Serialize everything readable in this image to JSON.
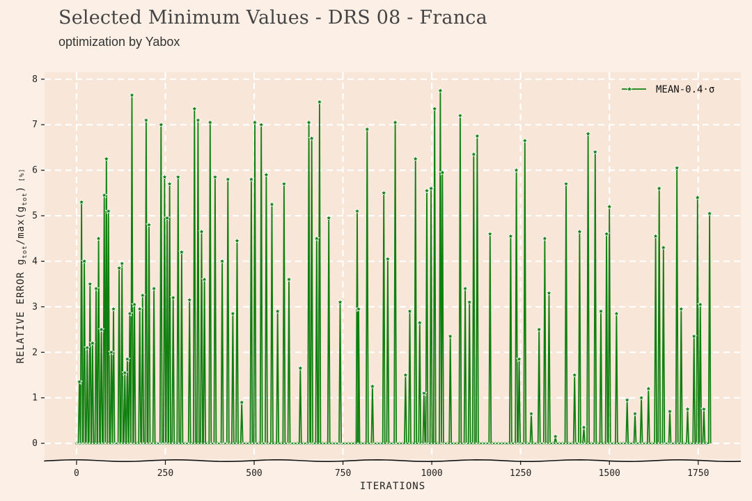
{
  "header": {
    "title": "Selected Minimum Values - DRS 08 - Franca",
    "subtitle": "optimization by Yabox"
  },
  "colors": {
    "background": "#fcf0e6",
    "plot_background": "#f8e6d9",
    "grid": "#ffffff",
    "series": "#0f7f0f"
  },
  "chart_data": {
    "type": "line",
    "title": "Selected Minimum Values - DRS 08 - Franca",
    "subtitle": "optimization by Yabox",
    "xlabel": "ITERATIONS",
    "ylabel": "RELATIVE ERROR g_tot/max(g_tot) [%]",
    "ylabel_main": "RELATIVE ERROR g",
    "ylabel_sub1": "tot",
    "ylabel_mid": "/max(g",
    "ylabel_sub2": "tot",
    "ylabel_end": ")",
    "ylabel_unit": "[%]",
    "xlim": [
      -90,
      1870
    ],
    "ylim": [
      -0.35,
      8.15
    ],
    "xticks": [
      0,
      250,
      500,
      750,
      1000,
      1250,
      1500,
      1750
    ],
    "yticks": [
      0,
      1,
      2,
      3,
      4,
      5,
      6,
      7,
      8
    ],
    "grid": true,
    "legend_position": "top-right",
    "series": [
      {
        "name": "MEAN-0.4·σ",
        "marker": "star",
        "note_values": "estimated peak heights of spikes read from the chart, each spike returns to 0",
        "peaks": [
          [
            8,
            1.35
          ],
          [
            14,
            5.3
          ],
          [
            22,
            4.0
          ],
          [
            30,
            2.1
          ],
          [
            38,
            3.5
          ],
          [
            45,
            2.2
          ],
          [
            55,
            3.4
          ],
          [
            62,
            4.5
          ],
          [
            70,
            2.5
          ],
          [
            78,
            5.45
          ],
          [
            84,
            6.25
          ],
          [
            90,
            5.1
          ],
          [
            98,
            2.0
          ],
          [
            104,
            2.95
          ],
          [
            120,
            3.85
          ],
          [
            128,
            3.95
          ],
          [
            136,
            1.55
          ],
          [
            143,
            1.85
          ],
          [
            150,
            2.85
          ],
          [
            156,
            7.65
          ],
          [
            163,
            3.05
          ],
          [
            178,
            2.95
          ],
          [
            186,
            3.25
          ],
          [
            196,
            7.1
          ],
          [
            204,
            4.8
          ],
          [
            218,
            3.4
          ],
          [
            238,
            7.0
          ],
          [
            248,
            5.85
          ],
          [
            255,
            4.95
          ],
          [
            262,
            5.7
          ],
          [
            272,
            3.2
          ],
          [
            286,
            5.85
          ],
          [
            296,
            4.2
          ],
          [
            318,
            3.15
          ],
          [
            332,
            7.35
          ],
          [
            342,
            7.1
          ],
          [
            352,
            4.65
          ],
          [
            360,
            3.6
          ],
          [
            376,
            7.05
          ],
          [
            390,
            5.85
          ],
          [
            410,
            4.0
          ],
          [
            426,
            5.8
          ],
          [
            440,
            2.85
          ],
          [
            452,
            4.45
          ],
          [
            465,
            0.9
          ],
          [
            492,
            5.8
          ],
          [
            502,
            7.05
          ],
          [
            520,
            7.0
          ],
          [
            534,
            5.9
          ],
          [
            550,
            5.25
          ],
          [
            566,
            2.9
          ],
          [
            584,
            5.7
          ],
          [
            598,
            3.6
          ],
          [
            630,
            1.65
          ],
          [
            654,
            7.05
          ],
          [
            662,
            6.7
          ],
          [
            676,
            4.5
          ],
          [
            684,
            7.5
          ],
          [
            710,
            4.95
          ],
          [
            742,
            3.1
          ],
          [
            790,
            5.1
          ],
          [
            794,
            2.95
          ],
          [
            818,
            6.9
          ],
          [
            833,
            1.25
          ],
          [
            865,
            5.5
          ],
          [
            876,
            4.05
          ],
          [
            897,
            7.05
          ],
          [
            926,
            1.5
          ],
          [
            938,
            2.9
          ],
          [
            954,
            6.25
          ],
          [
            966,
            2.65
          ],
          [
            978,
            1.1
          ],
          [
            986,
            5.55
          ],
          [
            998,
            5.6
          ],
          [
            1008,
            7.35
          ],
          [
            1024,
            7.75
          ],
          [
            1030,
            5.95
          ],
          [
            1052,
            2.35
          ],
          [
            1080,
            7.2
          ],
          [
            1094,
            3.4
          ],
          [
            1106,
            3.1
          ],
          [
            1118,
            6.35
          ],
          [
            1128,
            6.75
          ],
          [
            1164,
            4.6
          ],
          [
            1222,
            4.55
          ],
          [
            1238,
            6.0
          ],
          [
            1246,
            1.85
          ],
          [
            1262,
            6.65
          ],
          [
            1280,
            0.65
          ],
          [
            1302,
            2.5
          ],
          [
            1318,
            4.5
          ],
          [
            1330,
            3.3
          ],
          [
            1348,
            0.15
          ],
          [
            1378,
            5.7
          ],
          [
            1402,
            1.5
          ],
          [
            1416,
            4.65
          ],
          [
            1428,
            0.35
          ],
          [
            1440,
            6.8
          ],
          [
            1460,
            6.4
          ],
          [
            1476,
            2.9
          ],
          [
            1492,
            4.6
          ],
          [
            1500,
            5.2
          ],
          [
            1520,
            2.85
          ],
          [
            1550,
            0.95
          ],
          [
            1572,
            0.65
          ],
          [
            1590,
            1.0
          ],
          [
            1610,
            1.2
          ],
          [
            1630,
            4.55
          ],
          [
            1640,
            5.6
          ],
          [
            1652,
            4.3
          ],
          [
            1670,
            0.7
          ],
          [
            1690,
            6.05
          ],
          [
            1702,
            2.95
          ],
          [
            1720,
            0.75
          ],
          [
            1738,
            2.35
          ],
          [
            1748,
            5.4
          ],
          [
            1756,
            3.05
          ],
          [
            1766,
            0.75
          ],
          [
            1782,
            5.05
          ]
        ]
      }
    ]
  }
}
